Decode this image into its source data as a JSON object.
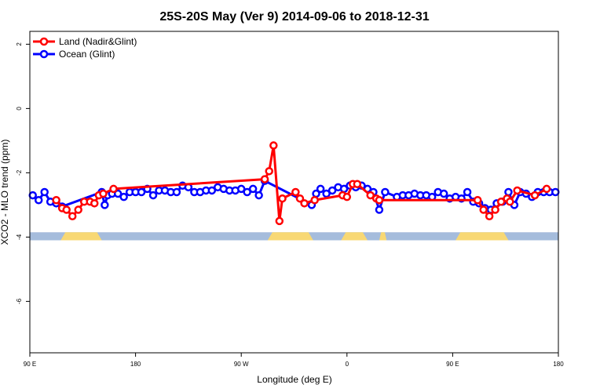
{
  "chart_data": {
    "type": "line",
    "title": "25S-20S May (Ver 9)   2014-09-06 to 2018-12-31",
    "xlabel": "Longitude (deg E)",
    "ylabel": "XCO2 - MLO trend (ppm)",
    "xlim": [
      90,
      450
    ],
    "ylim": [
      -7.6,
      2.4
    ],
    "x_ticks": [
      {
        "value": 90,
        "label": "90 E"
      },
      {
        "value": 162,
        "label": "180"
      },
      {
        "value": 234,
        "label": "90 W"
      },
      {
        "value": 306,
        "label": "0"
      },
      {
        "value": 378,
        "label": "90 E"
      },
      {
        "value": 450,
        "label": "180"
      }
    ],
    "y_ticks": [
      {
        "value": 2,
        "label": "2"
      },
      {
        "value": 0,
        "label": "0"
      },
      {
        "value": -2,
        "label": "-2"
      },
      {
        "value": -4,
        "label": "-4"
      },
      {
        "value": -6,
        "label": "-6"
      }
    ],
    "grid": false,
    "legend_position": "top-left",
    "land_mask": {
      "y_range": [
        -4.1,
        -3.85
      ],
      "ocean_color": "#a5bcdc",
      "land_color": "#f8d874",
      "land_segments": [
        [
          111,
          139
        ],
        [
          252,
          283
        ],
        [
          302,
          320
        ],
        [
          328,
          333
        ],
        [
          380,
          416
        ]
      ]
    },
    "series": [
      {
        "name": "Land (Nadir&Glint)",
        "color": "#ff0000",
        "x": [
          108,
          112,
          115,
          119,
          123,
          127,
          131,
          134,
          137,
          140,
          147,
          250,
          253,
          256,
          260,
          262,
          271,
          274,
          277,
          284,
          303,
          306,
          310,
          313,
          322,
          326,
          328,
          395,
          399,
          403,
          407,
          411,
          415,
          417,
          422,
          434,
          442
        ],
        "y": [
          -2.85,
          -3.1,
          -3.15,
          -3.35,
          -3.15,
          -2.9,
          -2.9,
          -2.95,
          -2.7,
          -2.65,
          -2.5,
          -2.2,
          -1.95,
          -1.15,
          -3.5,
          -2.8,
          -2.6,
          -2.8,
          -2.95,
          -2.85,
          -2.7,
          -2.75,
          -2.35,
          -2.35,
          -2.7,
          -2.8,
          -2.85,
          -2.85,
          -3.15,
          -3.35,
          -3.15,
          -2.9,
          -2.8,
          -2.9,
          -2.55,
          -2.7,
          -2.5
        ]
      },
      {
        "name": "Ocean (Glint)",
        "color": "#0000ff",
        "x": [
          92,
          96,
          100,
          104,
          108,
          112,
          139,
          141,
          143,
          146,
          150,
          154,
          158,
          162,
          166,
          170,
          174,
          178,
          182,
          186,
          190,
          194,
          198,
          202,
          206,
          210,
          214,
          218,
          222,
          226,
          230,
          234,
          238,
          242,
          246,
          250,
          282,
          285,
          288,
          292,
          296,
          300,
          304,
          308,
          312,
          316,
          320,
          324,
          328,
          332,
          340,
          344,
          348,
          352,
          356,
          360,
          364,
          368,
          372,
          376,
          380,
          384,
          388,
          392,
          396,
          400,
          404,
          408,
          412,
          416,
          420,
          424,
          428,
          432,
          436,
          440,
          444,
          448
        ],
        "y": [
          -2.7,
          -2.85,
          -2.6,
          -2.9,
          -2.95,
          -3.05,
          -2.6,
          -3.0,
          -2.7,
          -2.65,
          -2.65,
          -2.75,
          -2.6,
          -2.6,
          -2.6,
          -2.5,
          -2.7,
          -2.55,
          -2.55,
          -2.6,
          -2.6,
          -2.4,
          -2.45,
          -2.6,
          -2.6,
          -2.55,
          -2.55,
          -2.45,
          -2.5,
          -2.55,
          -2.55,
          -2.5,
          -2.6,
          -2.5,
          -2.7,
          -2.25,
          -3.0,
          -2.65,
          -2.5,
          -2.65,
          -2.55,
          -2.45,
          -2.5,
          -2.4,
          -2.45,
          -2.4,
          -2.5,
          -2.6,
          -3.15,
          -2.6,
          -2.75,
          -2.7,
          -2.7,
          -2.65,
          -2.7,
          -2.7,
          -2.75,
          -2.6,
          -2.65,
          -2.8,
          -2.75,
          -2.8,
          -2.6,
          -2.9,
          -2.95,
          -3.1,
          -3.15,
          -2.95,
          -2.9,
          -2.6,
          -3.0,
          -2.6,
          -2.65,
          -2.75,
          -2.6,
          -2.6,
          -2.6,
          -2.6
        ]
      }
    ]
  }
}
